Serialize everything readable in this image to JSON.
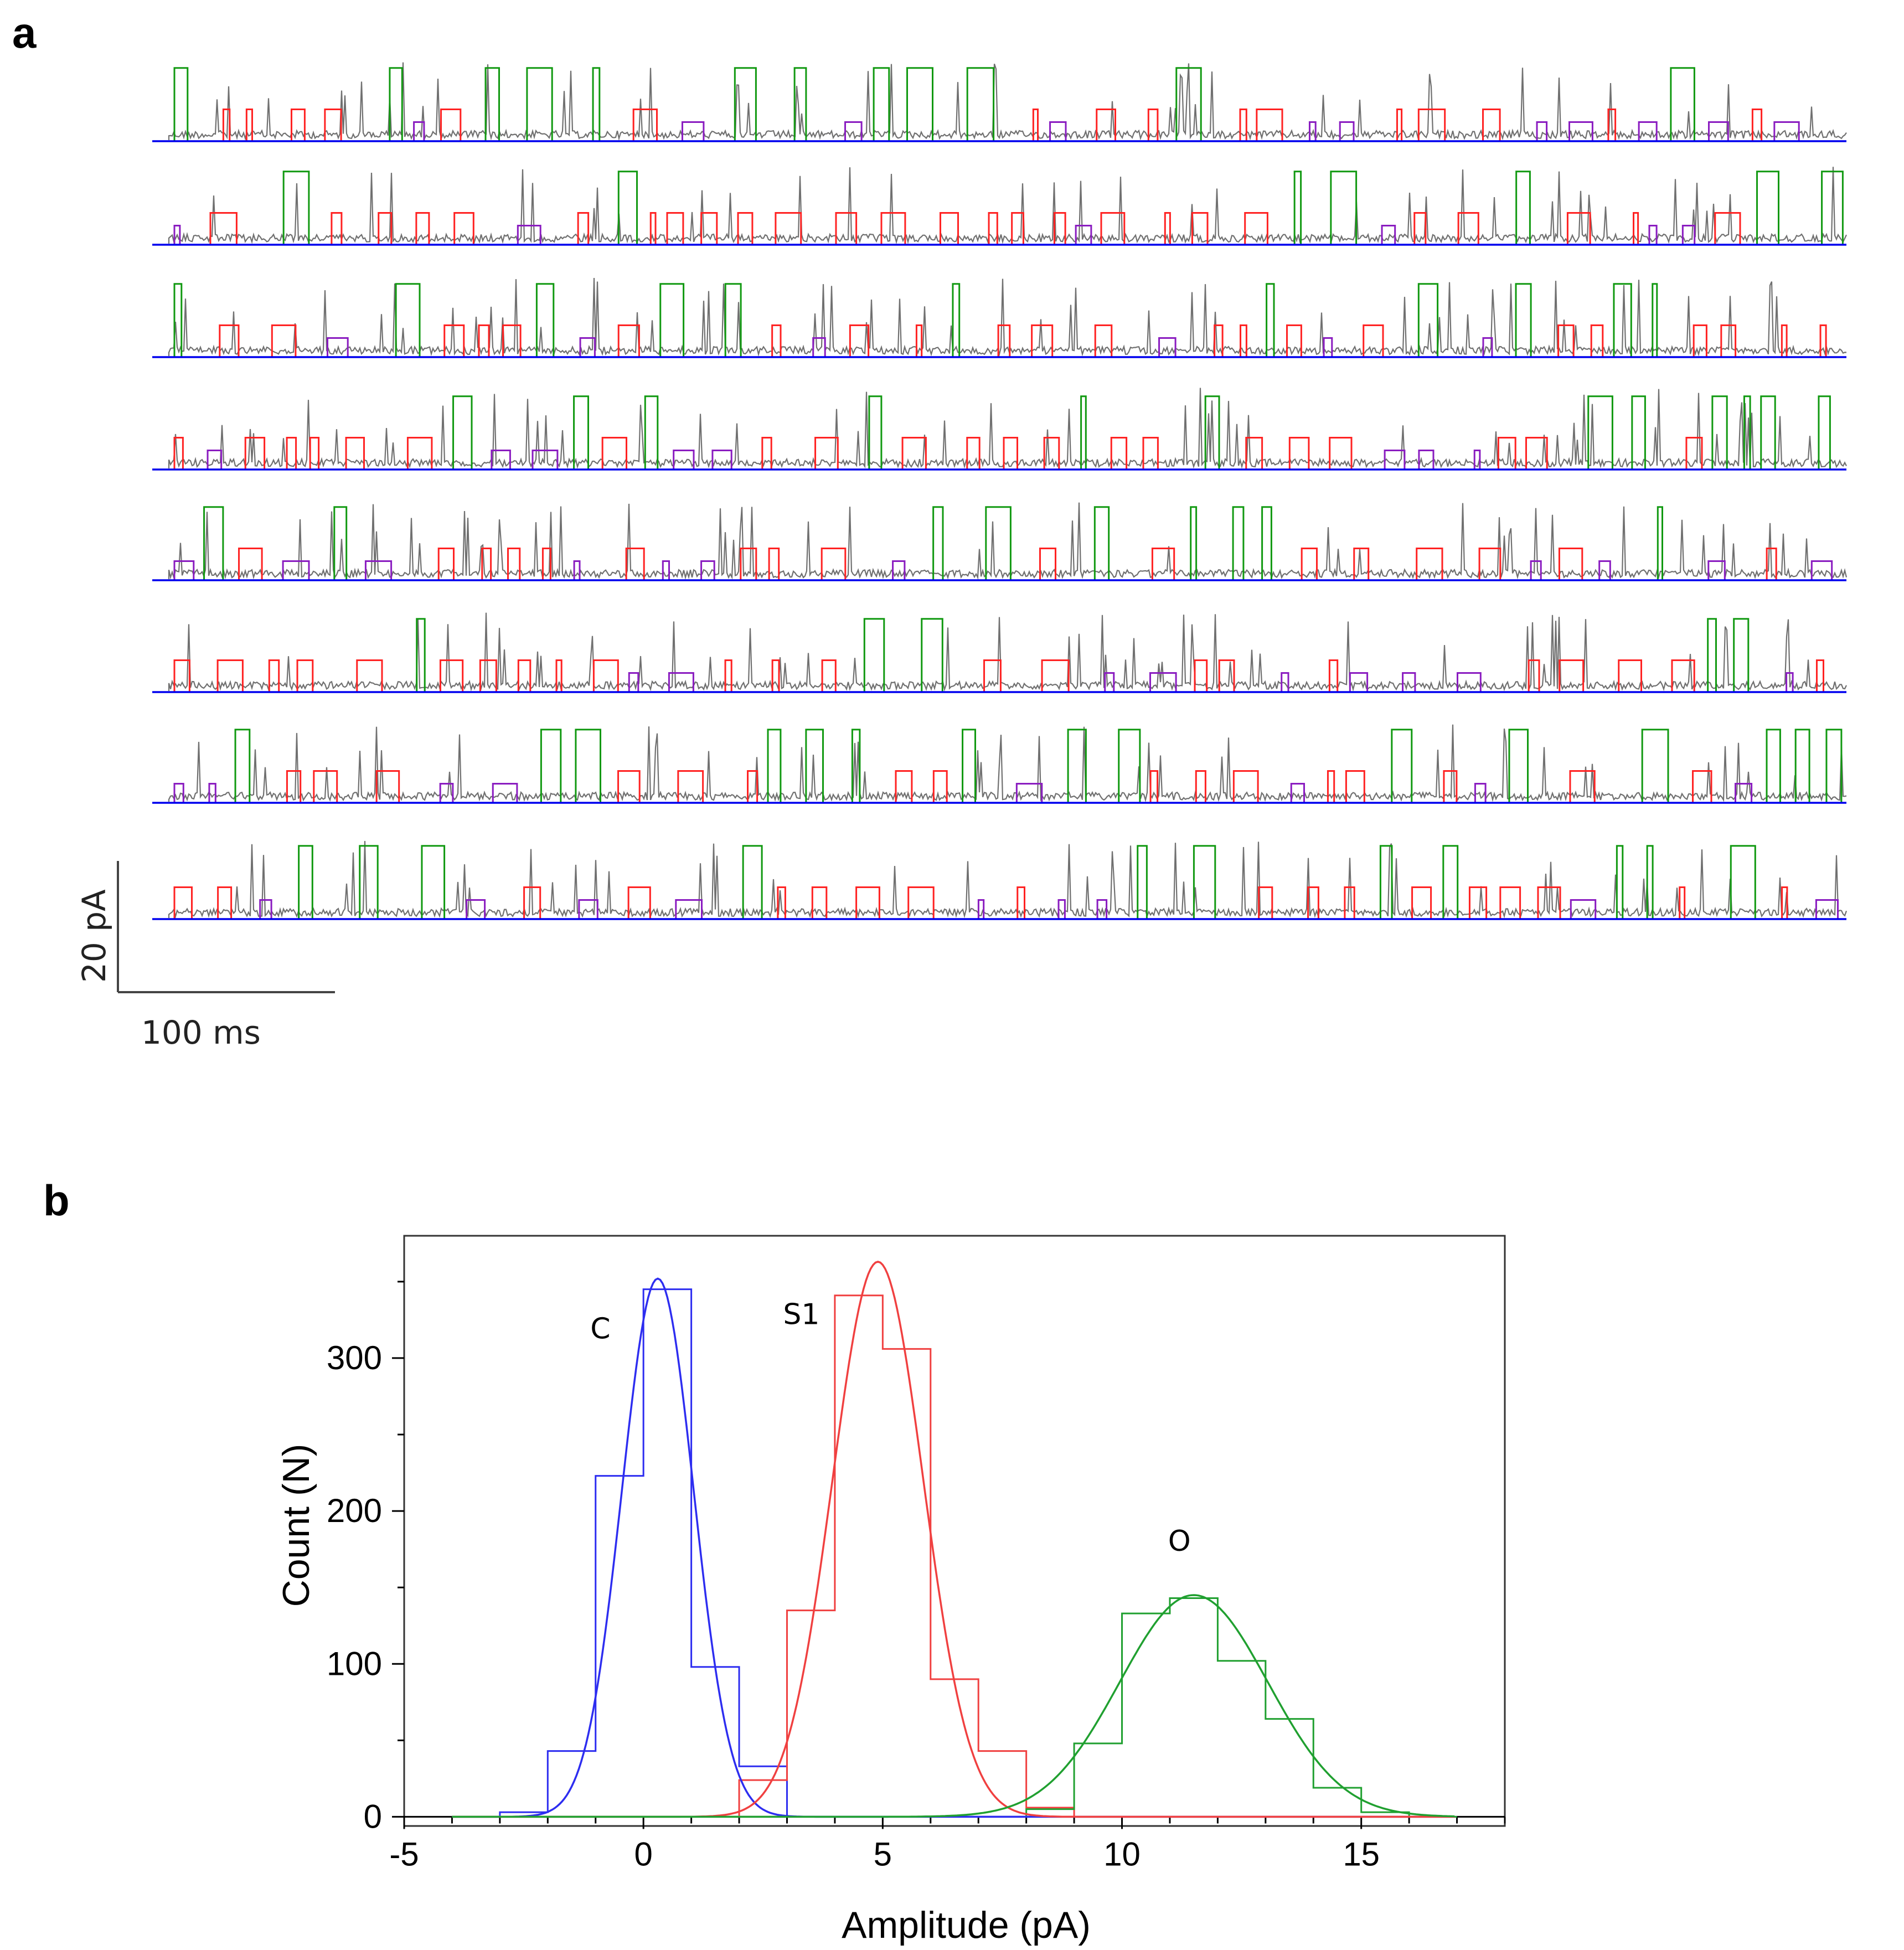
{
  "panel_a": {
    "label": "a",
    "type": "single-channel current traces",
    "trace_rows": 8,
    "level_colors": {
      "closed": "#0000ee",
      "sublevel": "#ff2222",
      "open": "#119911",
      "raw": "#707070",
      "transition": "#8a1cc0"
    },
    "level_amplitudes_pA": {
      "closed": 0,
      "sublevel": 5,
      "open": 11.5
    },
    "scale_bar": {
      "y_label": "20 pA",
      "x_label": "100 ms",
      "y_value_pA": 20,
      "x_value_ms": 100
    }
  },
  "chart_data": {
    "label": "b",
    "type": "histogram",
    "title": "",
    "xlabel": "Amplitude (pA)",
    "ylabel": "Count (N)",
    "xlim": [
      -5,
      18
    ],
    "ylim": [
      -6,
      380
    ],
    "xticks": [
      -5,
      0,
      5,
      10,
      15
    ],
    "yticks": [
      0,
      100,
      200,
      300
    ],
    "grid": false,
    "series": [
      {
        "name": "C",
        "color": "#2d2df0",
        "bins": [
          [
            -4,
            -3,
            0
          ],
          [
            -3,
            -2,
            3
          ],
          [
            -2,
            -1,
            43
          ],
          [
            -1,
            0,
            223
          ],
          [
            0,
            1,
            345
          ],
          [
            1,
            2,
            98
          ],
          [
            2,
            3,
            33
          ],
          [
            3,
            4,
            0
          ]
        ],
        "fit": {
          "amplitude": 352,
          "mean": 0.3,
          "sd": 0.75,
          "range": [
            -4,
            17
          ]
        },
        "label": "C"
      },
      {
        "name": "S1",
        "color": "#f04040",
        "bins": [
          [
            2,
            3,
            24
          ],
          [
            3,
            4,
            135
          ],
          [
            4,
            5,
            341
          ],
          [
            5,
            6,
            306
          ],
          [
            6,
            7,
            90
          ],
          [
            7,
            8,
            43
          ],
          [
            8,
            9,
            6
          ],
          [
            9,
            10,
            0
          ]
        ],
        "fit": {
          "amplitude": 363,
          "mean": 4.9,
          "sd": 0.95,
          "range": [
            -4,
            17
          ]
        },
        "label": "S1"
      },
      {
        "name": "O",
        "color": "#20a030",
        "bins": [
          [
            8,
            9,
            5
          ],
          [
            9,
            10,
            48
          ],
          [
            10,
            11,
            133
          ],
          [
            11,
            12,
            143
          ],
          [
            12,
            13,
            102
          ],
          [
            13,
            14,
            64
          ],
          [
            14,
            15,
            19
          ],
          [
            15,
            16,
            3
          ],
          [
            16,
            17,
            0
          ]
        ],
        "fit": {
          "amplitude": 145,
          "mean": 11.5,
          "sd": 1.55,
          "range": [
            -4,
            17
          ]
        },
        "label": "O"
      }
    ]
  }
}
